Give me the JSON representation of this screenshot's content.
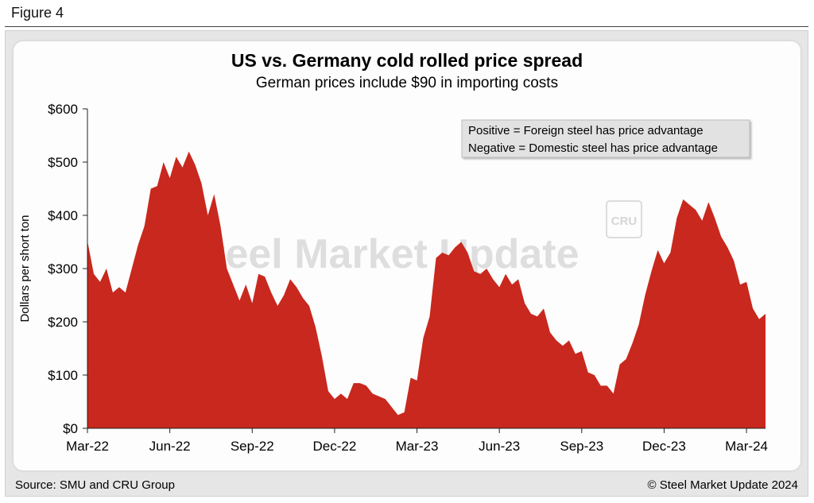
{
  "figure_label": "Figure 4",
  "source_note": "Source: SMU and CRU Group",
  "copyright": "© Steel Market Update 2024",
  "watermark": "Steel Market Update",
  "watermark_badge": "CRU",
  "legend_box": {
    "line1": "Positive = Foreign steel has price advantage",
    "line2": "Negative = Domestic steel has price advantage"
  },
  "colors": {
    "fill": "#C8281E",
    "axis": "#222222",
    "panel": "#E6E6E6"
  },
  "chart_data": {
    "type": "area",
    "title": "US vs. Germany cold rolled price spread",
    "subtitle": "German prices include $90 in importing costs",
    "xlabel": "",
    "ylabel": "Dollars per short ton",
    "ylim": [
      0,
      600
    ],
    "yticks": [
      0,
      100,
      200,
      300,
      400,
      500,
      600
    ],
    "ytick_labels": [
      "$0",
      "$100",
      "$200",
      "$300",
      "$400",
      "$500",
      "$600"
    ],
    "xtick_labels": [
      "Mar-22",
      "Jun-22",
      "Sep-22",
      "Dec-22",
      "Mar-23",
      "Jun-23",
      "Sep-23",
      "Dec-23",
      "Mar-24"
    ],
    "xtick_index": [
      0,
      13,
      26,
      39,
      52,
      65,
      78,
      91,
      104
    ],
    "grid": false,
    "legend": "top-right",
    "values": [
      352,
      290,
      275,
      300,
      255,
      265,
      255,
      300,
      345,
      380,
      450,
      455,
      500,
      470,
      510,
      490,
      520,
      495,
      460,
      400,
      440,
      380,
      300,
      270,
      240,
      270,
      235,
      290,
      285,
      255,
      230,
      250,
      280,
      265,
      245,
      230,
      190,
      135,
      70,
      55,
      65,
      55,
      85,
      85,
      80,
      65,
      60,
      55,
      40,
      25,
      30,
      95,
      90,
      170,
      210,
      320,
      330,
      325,
      340,
      350,
      330,
      295,
      290,
      300,
      280,
      265,
      290,
      270,
      280,
      235,
      215,
      210,
      225,
      180,
      165,
      155,
      165,
      140,
      145,
      105,
      100,
      80,
      80,
      65,
      120,
      130,
      160,
      195,
      250,
      295,
      335,
      310,
      330,
      395,
      430,
      420,
      410,
      390,
      425,
      395,
      360,
      340,
      315,
      270,
      275,
      225,
      205,
      215
    ]
  }
}
